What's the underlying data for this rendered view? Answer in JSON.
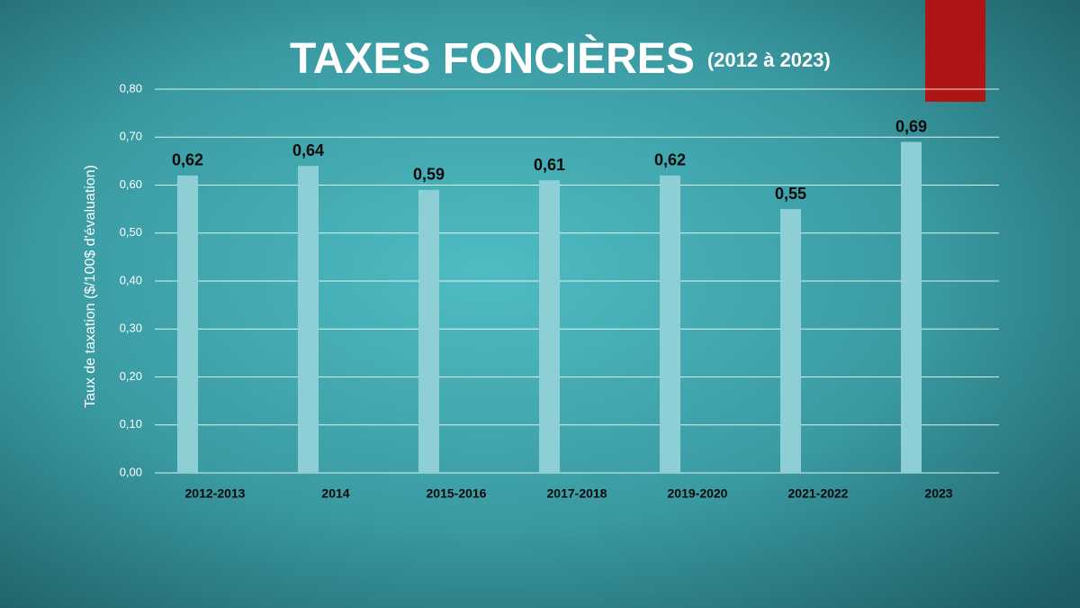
{
  "chart_data": {
    "type": "bar",
    "title": "TAXES FONCIÈRES",
    "subtitle": "(2012 à 2023)",
    "y_label": "Taux de taxation  ($/100$ d'évaluation)",
    "categories": [
      "2012-2013",
      "2014",
      "2015-2016",
      "2017-2018",
      "2019-2020",
      "2021-2022",
      "2023"
    ],
    "values": [
      0.62,
      0.64,
      0.59,
      0.61,
      0.62,
      0.55,
      0.69
    ],
    "value_labels": [
      "0,62",
      "0,64",
      "0,59",
      "0,61",
      "0,62",
      "0,55",
      "0,69"
    ],
    "color": "#8ecfd6",
    "ylim": [
      0,
      0.8
    ],
    "yticks": [
      {
        "value": 0,
        "label": "0,00"
      },
      {
        "value": 0.1,
        "label": "0,10"
      },
      {
        "value": 0.2,
        "label": "0,20"
      },
      {
        "value": 0.3,
        "label": "0,30"
      },
      {
        "value": 0.4,
        "label": "0,40"
      },
      {
        "value": 0.5,
        "label": "0,50"
      },
      {
        "value": 0.6,
        "label": "0,60"
      },
      {
        "value": 0.7,
        "label": "0,70"
      },
      {
        "value": 0.8,
        "label": "0,80"
      }
    ],
    "grid": true
  }
}
